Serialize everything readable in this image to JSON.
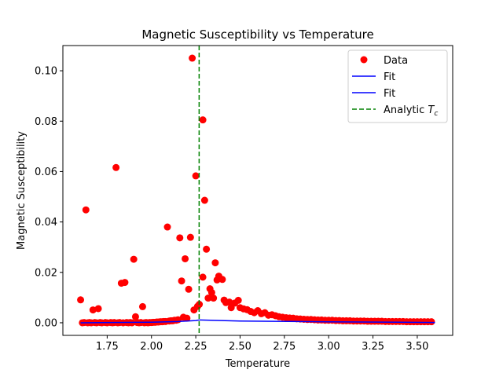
{
  "chart_data": {
    "type": "scatter",
    "title": "Magnetic Susceptibility vs Temperature",
    "xlabel": "Temperature",
    "ylabel": "Magnetic Susceptibility",
    "xlim": [
      1.5,
      3.7
    ],
    "ylim": [
      -0.005,
      0.11
    ],
    "x_ticks": [
      1.75,
      2.0,
      2.25,
      2.5,
      2.75,
      3.0,
      3.25,
      3.5
    ],
    "x_tick_labels": [
      "1.75",
      "2.00",
      "2.25",
      "2.50",
      "2.75",
      "3.00",
      "3.25",
      "3.50"
    ],
    "y_ticks": [
      0.0,
      0.02,
      0.04,
      0.06,
      0.08,
      0.1
    ],
    "y_tick_labels": [
      "0.00",
      "0.02",
      "0.04",
      "0.06",
      "0.08",
      "0.10"
    ],
    "grid": false,
    "legend_placement": "top-right",
    "legend": [
      {
        "label": "Data",
        "kind": "marker",
        "color": "#ff0000"
      },
      {
        "label": "Fit",
        "kind": "line",
        "color": "#0000ff"
      },
      {
        "label": "Fit",
        "kind": "line",
        "color": "#0000ff"
      },
      {
        "label": "Analytic $T_c$",
        "label_main": "Analytic ",
        "label_italic": "T",
        "label_sub": "c",
        "kind": "dashed",
        "color": "#008000"
      }
    ],
    "series": [
      {
        "name": "Data",
        "kind": "scatter",
        "color": "#ff0000",
        "points": [
          [
            1.6,
            0.0091
          ],
          [
            1.63,
            0.0448
          ],
          [
            1.67,
            0.0051
          ],
          [
            1.7,
            0.0056
          ],
          [
            1.8,
            0.0616
          ],
          [
            1.83,
            0.0157
          ],
          [
            1.85,
            0.016
          ],
          [
            1.9,
            0.0252
          ],
          [
            1.91,
            0.0024
          ],
          [
            1.95,
            0.0064
          ],
          [
            2.09,
            0.038
          ],
          [
            2.16,
            0.0337
          ],
          [
            2.17,
            0.0166
          ],
          [
            2.19,
            0.0254
          ],
          [
            2.21,
            0.0133
          ],
          [
            2.22,
            0.0339
          ],
          [
            2.23,
            0.105
          ],
          [
            2.24,
            0.0051
          ],
          [
            2.25,
            0.0583
          ],
          [
            2.27,
            0.0073
          ],
          [
            2.29,
            0.0805
          ],
          [
            2.29,
            0.0181
          ],
          [
            2.3,
            0.0486
          ],
          [
            2.31,
            0.0292
          ],
          [
            2.32,
            0.0098
          ],
          [
            2.33,
            0.0135
          ],
          [
            2.34,
            0.012
          ],
          [
            2.35,
            0.0098
          ],
          [
            2.36,
            0.0238
          ],
          [
            2.37,
            0.017
          ],
          [
            2.38,
            0.0185
          ],
          [
            2.4,
            0.0172
          ],
          [
            2.41,
            0.009
          ],
          [
            2.42,
            0.008
          ],
          [
            2.44,
            0.0082
          ],
          [
            2.45,
            0.006
          ],
          [
            2.47,
            0.0078
          ],
          [
            2.49,
            0.0089
          ],
          [
            2.5,
            0.006
          ],
          [
            2.52,
            0.0055
          ],
          [
            2.54,
            0.0052
          ],
          [
            2.56,
            0.0045
          ],
          [
            2.58,
            0.004
          ],
          [
            2.6,
            0.0048
          ],
          [
            2.62,
            0.0036
          ],
          [
            2.64,
            0.004
          ],
          [
            2.66,
            0.003
          ],
          [
            2.68,
            0.0032
          ],
          [
            2.7,
            0.0028
          ],
          [
            2.72,
            0.0024
          ],
          [
            2.74,
            0.0022
          ],
          [
            2.76,
            0.002
          ],
          [
            2.78,
            0.0019
          ],
          [
            2.8,
            0.0018
          ],
          [
            2.82,
            0.0016
          ],
          [
            2.84,
            0.0015
          ],
          [
            2.86,
            0.0014
          ],
          [
            2.88,
            0.0013
          ],
          [
            2.9,
            0.0013
          ],
          [
            2.92,
            0.0012
          ],
          [
            2.94,
            0.0011
          ],
          [
            2.96,
            0.0011
          ],
          [
            2.98,
            0.001
          ],
          [
            3.0,
            0.001
          ],
          [
            3.02,
            0.001
          ],
          [
            3.04,
            0.0009
          ],
          [
            3.06,
            0.0009
          ],
          [
            3.08,
            0.0008
          ],
          [
            3.1,
            0.0008
          ],
          [
            3.12,
            0.0008
          ],
          [
            3.14,
            0.0007
          ],
          [
            3.16,
            0.0007
          ],
          [
            3.18,
            0.0007
          ],
          [
            3.2,
            0.0007
          ],
          [
            3.22,
            0.0006
          ],
          [
            3.24,
            0.0006
          ],
          [
            3.26,
            0.0006
          ],
          [
            3.28,
            0.0006
          ],
          [
            3.3,
            0.0006
          ],
          [
            3.32,
            0.0005
          ],
          [
            3.34,
            0.0005
          ],
          [
            3.36,
            0.0005
          ],
          [
            3.38,
            0.0005
          ],
          [
            3.4,
            0.0005
          ],
          [
            3.42,
            0.0005
          ],
          [
            3.44,
            0.0004
          ],
          [
            3.46,
            0.0004
          ],
          [
            3.48,
            0.0004
          ],
          [
            3.5,
            0.0004
          ],
          [
            3.52,
            0.0004
          ],
          [
            3.54,
            0.0004
          ],
          [
            3.56,
            0.0004
          ],
          [
            3.58,
            0.0004
          ],
          [
            1.61,
            0.0
          ],
          [
            1.62,
            0.0001
          ],
          [
            1.64,
            0.0
          ],
          [
            1.65,
            0.0001
          ],
          [
            1.66,
            0.0
          ],
          [
            1.68,
            0.0001
          ],
          [
            1.69,
            0.0
          ],
          [
            1.71,
            0.0001
          ],
          [
            1.72,
            0.0
          ],
          [
            1.74,
            0.0001
          ],
          [
            1.75,
            0.0
          ],
          [
            1.77,
            0.0001
          ],
          [
            1.78,
            0.0
          ],
          [
            1.79,
            0.0001
          ],
          [
            1.81,
            0.0
          ],
          [
            1.82,
            0.0001
          ],
          [
            1.84,
            0.0
          ],
          [
            1.86,
            0.0001
          ],
          [
            1.87,
            0.0
          ],
          [
            1.88,
            0.0001
          ],
          [
            1.89,
            0.0
          ],
          [
            1.92,
            0.0001
          ],
          [
            1.93,
            0.0
          ],
          [
            1.94,
            0.0001
          ],
          [
            1.96,
            0.0
          ],
          [
            1.97,
            0.0001
          ],
          [
            1.98,
            0.0
          ],
          [
            1.99,
            0.0001
          ],
          [
            2.0,
            0.0001
          ],
          [
            2.01,
            0.0002
          ],
          [
            2.02,
            0.0002
          ],
          [
            2.03,
            0.0003
          ],
          [
            2.04,
            0.0003
          ],
          [
            2.05,
            0.0004
          ],
          [
            2.06,
            0.0004
          ],
          [
            2.07,
            0.0005
          ],
          [
            2.08,
            0.0005
          ],
          [
            2.1,
            0.0007
          ],
          [
            2.11,
            0.0008
          ],
          [
            2.12,
            0.0008
          ],
          [
            2.13,
            0.001
          ],
          [
            2.14,
            0.001
          ],
          [
            2.15,
            0.0012
          ],
          [
            2.18,
            0.0022
          ],
          [
            2.2,
            0.0018
          ],
          [
            2.26,
            0.0065
          ]
        ]
      },
      {
        "name": "Fit",
        "kind": "line",
        "color": "#0000ff",
        "points": [
          [
            1.6,
            0.0
          ],
          [
            2.0,
            0.0002
          ],
          [
            2.15,
            0.0005
          ],
          [
            2.25,
            0.0009
          ],
          [
            2.269,
            0.0011
          ]
        ]
      },
      {
        "name": "Fit",
        "kind": "line",
        "color": "#0000ff",
        "points": [
          [
            2.269,
            0.0011
          ],
          [
            2.5,
            0.0007
          ],
          [
            3.0,
            0.0004
          ],
          [
            3.6,
            0.0001
          ]
        ]
      },
      {
        "name": "Analytic $T_c$",
        "kind": "vline",
        "color": "#008000",
        "x": 2.269
      }
    ]
  }
}
